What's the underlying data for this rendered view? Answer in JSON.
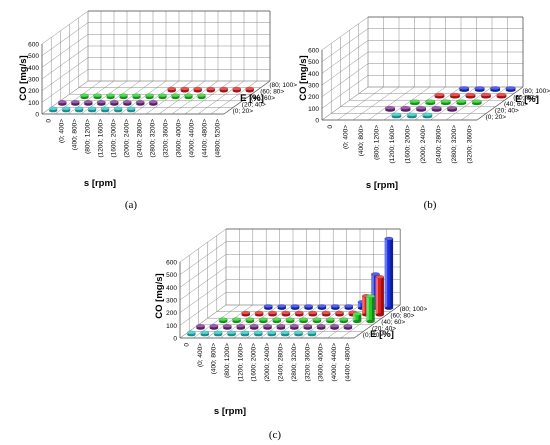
{
  "colors": {
    "series_0_20": "#26c6c6",
    "series_20_40": "#7a2a8c",
    "series_40_60": "#22cc22",
    "series_60_80": "#e01b1b",
    "series_80_100": "#1a2ee0"
  },
  "chart_data": [
    {
      "panel": "(a)",
      "type": "bar",
      "bar_style": "3d-cylinder",
      "xlabel": "s [rpm]",
      "ylabel": "CO [mg/s]",
      "zlabel": "E [%]",
      "ylim": [
        0,
        600
      ],
      "yticks": [
        "0",
        "100",
        "200",
        "300",
        "400",
        "500",
        "600"
      ],
      "grid": true,
      "categories": [
        "0",
        "(0; 400>",
        "(400; 800>",
        "(800; 1200>",
        "(1200; 1600>",
        "(1600; 2000>",
        "(2000; 2400>",
        "(2400; 2800>",
        "(2800; 3200>",
        "(3200; 3600>",
        "(3600; 4000>",
        "(4000; 4400>",
        "(4400; 4800>",
        "(4800; 5200>"
      ],
      "series": [
        {
          "name": "(0; 20>",
          "color_key": "series_0_20",
          "values": [
            5,
            5,
            5,
            5,
            5,
            5,
            5,
            null,
            null,
            null,
            null,
            null,
            null,
            null
          ]
        },
        {
          "name": "(20; 40>",
          "color_key": "series_20_40",
          "values": [
            5,
            5,
            5,
            5,
            5,
            5,
            5,
            5,
            null,
            null,
            null,
            null,
            null,
            null
          ]
        },
        {
          "name": "(40; 60>",
          "color_key": "series_40_60",
          "values": [
            null,
            5,
            5,
            5,
            5,
            5,
            5,
            5,
            5,
            5,
            5,
            null,
            null,
            null
          ]
        },
        {
          "name": "(60; 80>",
          "color_key": "series_60_80",
          "values": [
            null,
            null,
            null,
            null,
            null,
            null,
            null,
            10,
            10,
            15,
            15,
            15,
            15,
            20
          ]
        },
        {
          "name": "(80; 100>",
          "color_key": "series_80_100",
          "values": [
            null,
            null,
            null,
            null,
            null,
            null,
            null,
            null,
            null,
            null,
            null,
            null,
            null,
            null
          ]
        }
      ]
    },
    {
      "panel": "(b)",
      "type": "bar",
      "bar_style": "3d-cylinder",
      "xlabel": "s [rpm]",
      "ylabel": "CO [mg/s]",
      "zlabel": "E [%]",
      "ylim": [
        0,
        600
      ],
      "yticks": [
        "0",
        "100",
        "200",
        "300",
        "400",
        "500",
        "600"
      ],
      "grid": true,
      "categories": [
        "0",
        "(0; 400>",
        "(400; 800>",
        "(800; 1200>",
        "(1200; 1600>",
        "(1600; 2000>",
        "(2000; 2400>",
        "(2400; 2800>",
        "(2800; 3200>",
        "(3200; 3600>"
      ],
      "series": [
        {
          "name": "(0; 20>",
          "color_key": "series_0_20",
          "values": [
            null,
            null,
            null,
            null,
            5,
            5,
            5,
            null,
            null,
            null
          ]
        },
        {
          "name": "(20; 40>",
          "color_key": "series_20_40",
          "values": [
            null,
            null,
            null,
            5,
            5,
            5,
            5,
            5,
            null,
            null
          ]
        },
        {
          "name": "(40; 60>",
          "color_key": "series_40_60",
          "values": [
            null,
            null,
            null,
            null,
            5,
            5,
            5,
            5,
            5,
            null
          ]
        },
        {
          "name": "(60; 80>",
          "color_key": "series_60_80",
          "values": [
            null,
            null,
            null,
            null,
            null,
            5,
            5,
            5,
            5,
            5
          ]
        },
        {
          "name": "(80; 100>",
          "color_key": "series_80_100",
          "values": [
            null,
            null,
            null,
            null,
            null,
            null,
            5,
            5,
            5,
            5
          ]
        }
      ]
    },
    {
      "panel": "(c)",
      "type": "bar",
      "bar_style": "3d-cylinder",
      "xlabel": "s [rpm]",
      "ylabel": "CO [mg/s]",
      "zlabel": "E [%]",
      "ylim": [
        0,
        600
      ],
      "yticks": [
        "0",
        "100",
        "200",
        "300",
        "400",
        "500",
        "600"
      ],
      "grid": true,
      "categories": [
        "0",
        "(0; 400>",
        "(400; 800>",
        "(800; 1200>",
        "(1200; 1600>",
        "(1600; 2000>",
        "(2000; 2400>",
        "(2400; 2800>",
        "(2800; 3200>",
        "(3200; 3600>",
        "(3600; 4000>",
        "(4000; 4400>",
        "(4400; 4800>"
      ],
      "series": [
        {
          "name": "(0; 20>",
          "color_key": "series_0_20",
          "values": [
            5,
            5,
            5,
            5,
            5,
            5,
            5,
            5,
            5,
            5,
            null,
            null,
            null
          ]
        },
        {
          "name": "(20; 40>",
          "color_key": "series_20_40",
          "values": [
            5,
            5,
            5,
            5,
            5,
            5,
            5,
            5,
            5,
            5,
            5,
            10,
            null
          ]
        },
        {
          "name": "(40; 60>",
          "color_key": "series_40_60",
          "values": [
            null,
            5,
            5,
            5,
            5,
            5,
            5,
            5,
            5,
            5,
            10,
            60,
            200
          ]
        },
        {
          "name": "(60; 80>",
          "color_key": "series_60_80",
          "values": [
            null,
            null,
            5,
            5,
            5,
            5,
            5,
            5,
            5,
            10,
            20,
            150,
            300
          ]
        },
        {
          "name": "(80; 100>",
          "color_key": "series_80_100",
          "values": [
            null,
            null,
            null,
            5,
            5,
            5,
            5,
            5,
            10,
            15,
            50,
            270,
            550
          ]
        }
      ]
    }
  ]
}
